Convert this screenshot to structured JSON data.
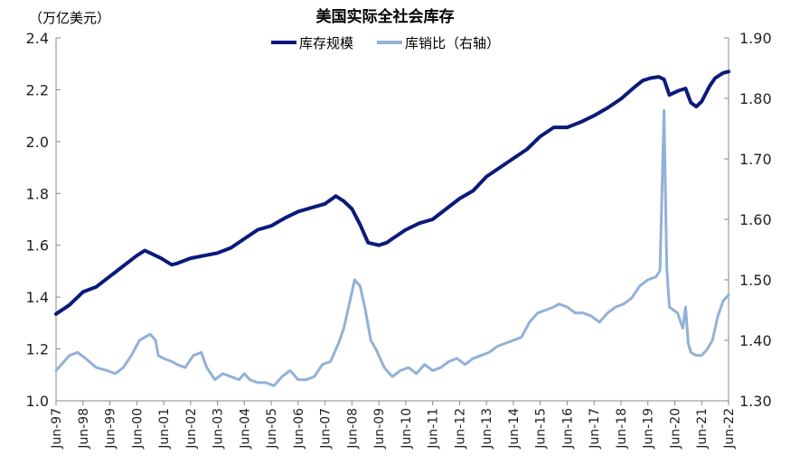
{
  "chart_data": {
    "type": "line",
    "title": "美国实际全社会库存",
    "unit_label": "（万亿美元）",
    "legend": [
      {
        "name": "库存规模",
        "color": "#0B1A7A"
      },
      {
        "name": "库销比（右轴）",
        "color": "#92B1D8"
      }
    ],
    "y_left": {
      "min": 1.0,
      "max": 2.4,
      "step": 0.2,
      "ticks": [
        "1.0",
        "1.2",
        "1.4",
        "1.6",
        "1.8",
        "2.0",
        "2.2",
        "2.4"
      ]
    },
    "y_right": {
      "min": 1.3,
      "max": 1.9,
      "step": 0.1,
      "ticks": [
        "1.30",
        "1.40",
        "1.50",
        "1.60",
        "1.70",
        "1.80",
        "1.90"
      ]
    },
    "x_start": 1997.5,
    "x_end": 2022.5,
    "x_tick_labels": [
      "Jun-97",
      "Jun-98",
      "Jun-99",
      "Jun-00",
      "Jun-01",
      "Jun-02",
      "Jun-03",
      "Jun-04",
      "Jun-05",
      "Jun-06",
      "Jun-07",
      "Jun-08",
      "Jun-09",
      "Jun-10",
      "Jun-11",
      "Jun-12",
      "Jun-13",
      "Jun-14",
      "Jun-15",
      "Jun-16",
      "Jun-17",
      "Jun-18",
      "Jun-19",
      "Jun-20",
      "Jun-21",
      "Jun-22"
    ],
    "series": [
      {
        "name": "库存规模",
        "axis": "left",
        "color": "#0B1A7A",
        "x": [
          1997.5,
          1998.0,
          1998.5,
          1999.0,
          1999.5,
          2000.0,
          2000.5,
          2000.8,
          2001.0,
          2001.4,
          2001.8,
          2002.0,
          2002.5,
          2003.0,
          2003.5,
          2004.0,
          2004.5,
          2005.0,
          2005.5,
          2006.0,
          2006.5,
          2007.0,
          2007.5,
          2007.9,
          2008.2,
          2008.5,
          2008.8,
          2009.1,
          2009.5,
          2009.8,
          2010.0,
          2010.5,
          2011.0,
          2011.5,
          2012.0,
          2012.5,
          2013.0,
          2013.5,
          2014.0,
          2014.5,
          2015.0,
          2015.5,
          2016.0,
          2016.5,
          2017.0,
          2017.5,
          2018.0,
          2018.5,
          2019.0,
          2019.3,
          2019.6,
          2019.9,
          2020.1,
          2020.3,
          2020.6,
          2020.9,
          2021.1,
          2021.3,
          2021.5,
          2021.8,
          2022.0,
          2022.3,
          2022.5
        ],
        "values": [
          1.335,
          1.37,
          1.42,
          1.44,
          1.48,
          1.52,
          1.56,
          1.58,
          1.57,
          1.55,
          1.525,
          1.53,
          1.55,
          1.56,
          1.57,
          1.59,
          1.625,
          1.66,
          1.675,
          1.705,
          1.73,
          1.745,
          1.76,
          1.79,
          1.77,
          1.74,
          1.68,
          1.61,
          1.6,
          1.61,
          1.625,
          1.66,
          1.685,
          1.7,
          1.74,
          1.78,
          1.81,
          1.865,
          1.9,
          1.935,
          1.97,
          2.02,
          2.055,
          2.055,
          2.075,
          2.1,
          2.13,
          2.165,
          2.21,
          2.235,
          2.245,
          2.25,
          2.24,
          2.18,
          2.195,
          2.205,
          2.15,
          2.135,
          2.155,
          2.215,
          2.245,
          2.265,
          2.27
        ]
      },
      {
        "name": "库销比（右轴）",
        "axis": "right",
        "color": "#92B1D8",
        "x": [
          1997.5,
          1997.8,
          1998.0,
          1998.3,
          1998.6,
          1999.0,
          1999.4,
          1999.7,
          2000.0,
          2000.3,
          2000.6,
          2000.8,
          2001.0,
          2001.2,
          2001.3,
          2001.5,
          2001.8,
          2002.0,
          2002.3,
          2002.6,
          2002.9,
          2003.1,
          2003.4,
          2003.7,
          2004.0,
          2004.3,
          2004.5,
          2004.7,
          2005.0,
          2005.3,
          2005.6,
          2005.9,
          2006.2,
          2006.5,
          2006.8,
          2007.1,
          2007.4,
          2007.7,
          2008.0,
          2008.2,
          2008.4,
          2008.6,
          2008.8,
          2009.0,
          2009.2,
          2009.4,
          2009.7,
          2010.0,
          2010.3,
          2010.6,
          2010.9,
          2011.2,
          2011.5,
          2011.8,
          2012.1,
          2012.4,
          2012.7,
          2013.0,
          2013.3,
          2013.6,
          2013.9,
          2014.2,
          2014.5,
          2014.8,
          2015.1,
          2015.4,
          2015.7,
          2016.0,
          2016.2,
          2016.5,
          2016.8,
          2017.1,
          2017.4,
          2017.7,
          2018.0,
          2018.3,
          2018.6,
          2018.9,
          2019.2,
          2019.5,
          2019.8,
          2019.95,
          2020.1,
          2020.2,
          2020.3,
          2020.45,
          2020.6,
          2020.8,
          2020.9,
          2021.0,
          2021.1,
          2021.3,
          2021.5,
          2021.7,
          2021.9,
          2022.1,
          2022.3,
          2022.5
        ],
        "values": [
          1.35,
          1.365,
          1.375,
          1.38,
          1.37,
          1.355,
          1.35,
          1.345,
          1.355,
          1.375,
          1.4,
          1.405,
          1.41,
          1.4,
          1.375,
          1.37,
          1.365,
          1.36,
          1.355,
          1.375,
          1.38,
          1.355,
          1.335,
          1.345,
          1.34,
          1.335,
          1.345,
          1.335,
          1.33,
          1.33,
          1.325,
          1.34,
          1.35,
          1.335,
          1.335,
          1.34,
          1.36,
          1.365,
          1.395,
          1.42,
          1.46,
          1.5,
          1.49,
          1.45,
          1.4,
          1.385,
          1.355,
          1.34,
          1.35,
          1.355,
          1.345,
          1.36,
          1.35,
          1.355,
          1.365,
          1.37,
          1.36,
          1.37,
          1.375,
          1.38,
          1.39,
          1.395,
          1.4,
          1.405,
          1.43,
          1.445,
          1.45,
          1.455,
          1.46,
          1.455,
          1.445,
          1.445,
          1.44,
          1.43,
          1.445,
          1.455,
          1.46,
          1.47,
          1.49,
          1.5,
          1.505,
          1.515,
          1.78,
          1.52,
          1.455,
          1.45,
          1.445,
          1.42,
          1.455,
          1.395,
          1.38,
          1.375,
          1.375,
          1.385,
          1.4,
          1.44,
          1.465,
          1.475
        ]
      }
    ]
  }
}
